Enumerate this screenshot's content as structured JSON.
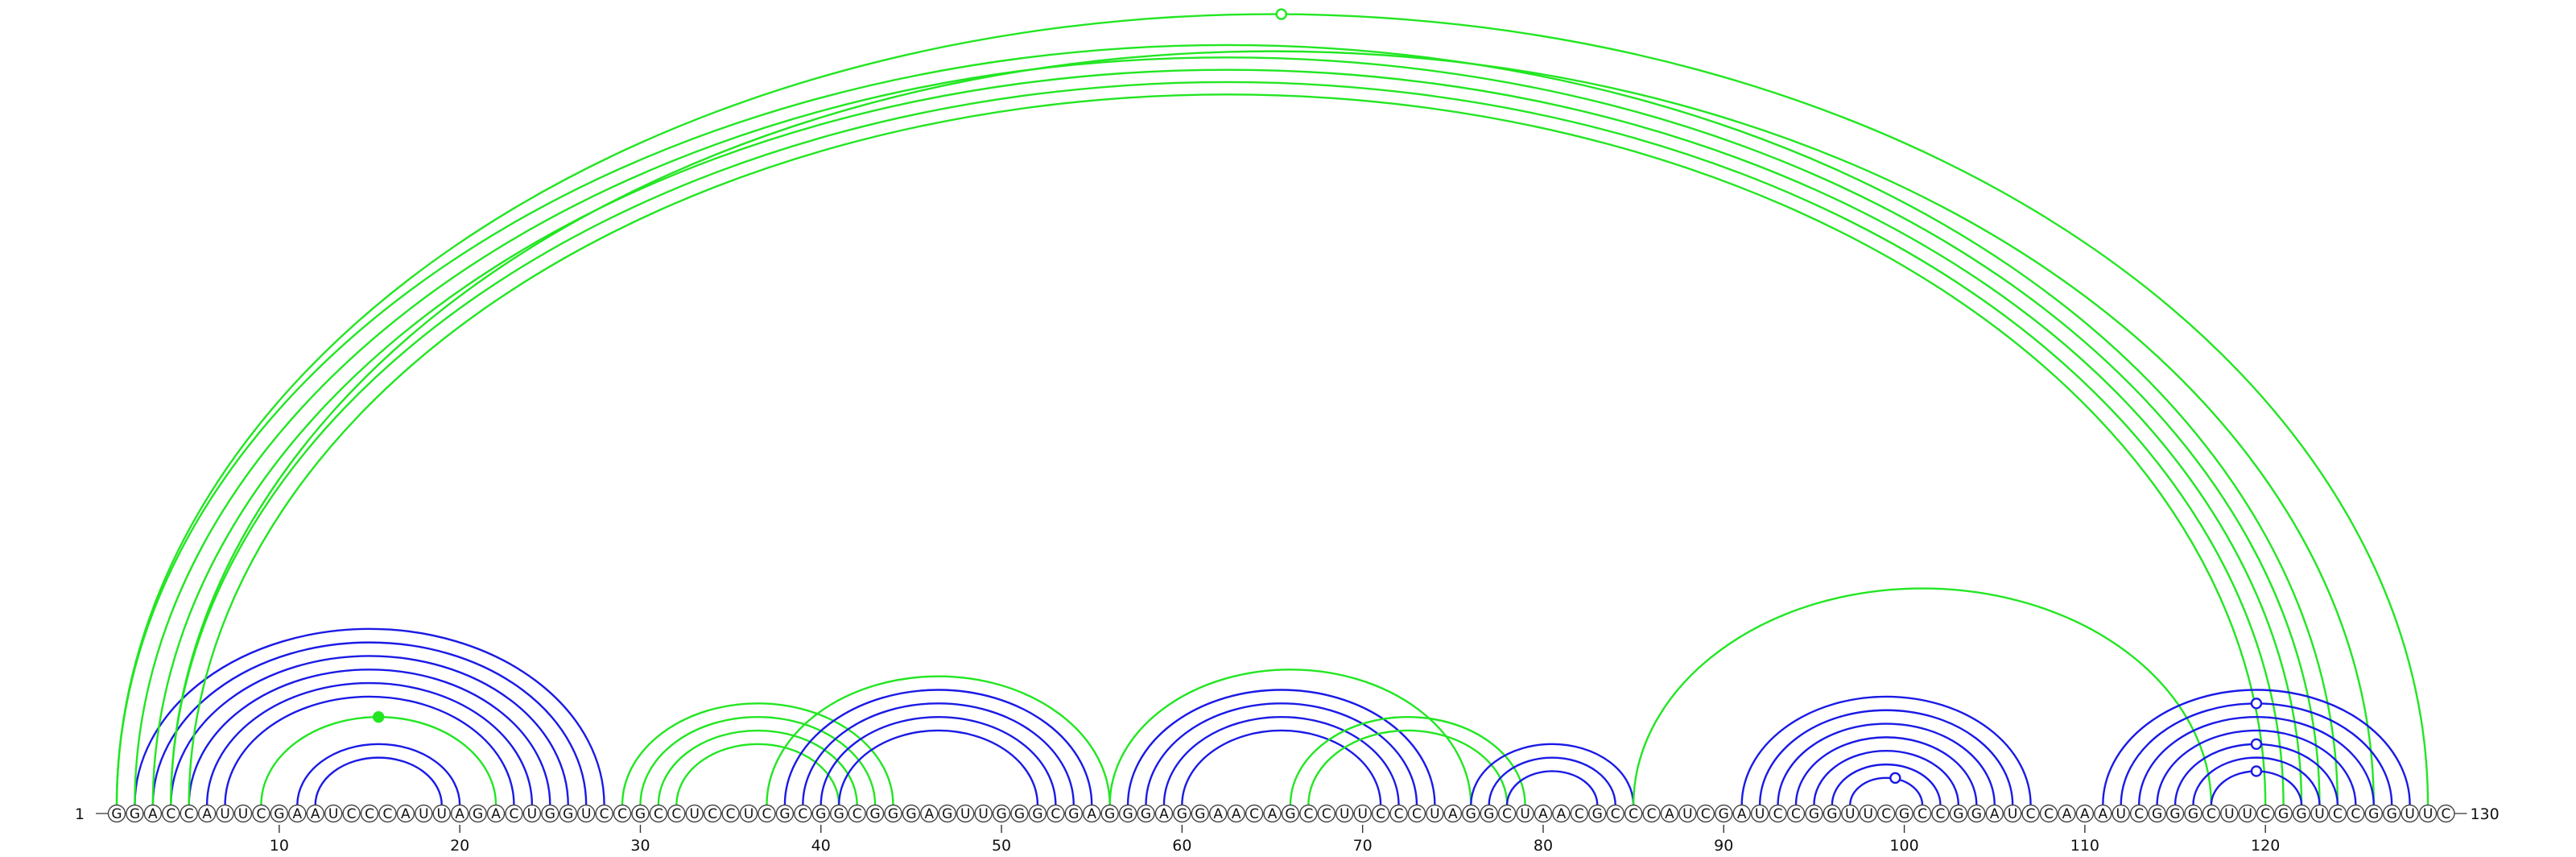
{
  "diagram": {
    "sequence": "GGACCAUUCGAAUCCCAUUAGACUGGUCCGCCUCCUCGCGGCGGGAGUUGGGCGAGGGAGGAACAGCCUUCCCUAGGCUAACGCCCAUCGAUCCGGUUCGCCGGAUCCAAAUCGGGCUUCGGUCCGGUUC",
    "start_label": "1",
    "end_label": "130",
    "tick_positions": [
      10,
      20,
      30,
      40,
      50,
      60,
      70,
      80,
      90,
      100,
      110,
      120
    ],
    "tick_labels": [
      "10",
      "20",
      "30",
      "40",
      "50",
      "60",
      "70",
      "80",
      "90",
      "100",
      "110",
      "120"
    ],
    "colors": {
      "blue": "#1a1ae6",
      "green": "#22e622"
    },
    "arcs": [
      {
        "i": 2,
        "j": 28,
        "color": "blue"
      },
      {
        "i": 3,
        "j": 27,
        "color": "blue"
      },
      {
        "i": 4,
        "j": 26,
        "color": "blue"
      },
      {
        "i": 5,
        "j": 25,
        "color": "blue"
      },
      {
        "i": 6,
        "j": 24,
        "color": "blue"
      },
      {
        "i": 7,
        "j": 23,
        "color": "blue"
      },
      {
        "i": 9,
        "j": 22,
        "color": "green"
      },
      {
        "i": 11,
        "j": 20,
        "color": "blue"
      },
      {
        "i": 12,
        "j": 19,
        "color": "blue"
      },
      {
        "i": 1,
        "j": 124,
        "color": "green"
      },
      {
        "i": 2,
        "j": 123,
        "color": "green"
      },
      {
        "i": 3,
        "j": 122,
        "color": "green"
      },
      {
        "i": 4,
        "j": 121,
        "color": "green"
      },
      {
        "i": 5,
        "j": 120,
        "color": "green"
      },
      {
        "i": 1,
        "j": 129,
        "color": "green"
      },
      {
        "i": 4,
        "j": 126,
        "color": "green"
      },
      {
        "i": 29,
        "j": 44,
        "color": "green"
      },
      {
        "i": 30,
        "j": 43,
        "color": "green"
      },
      {
        "i": 31,
        "j": 42,
        "color": "green"
      },
      {
        "i": 32,
        "j": 41,
        "color": "green"
      },
      {
        "i": 37,
        "j": 56,
        "color": "green"
      },
      {
        "i": 38,
        "j": 55,
        "color": "blue"
      },
      {
        "i": 39,
        "j": 54,
        "color": "blue"
      },
      {
        "i": 40,
        "j": 53,
        "color": "blue"
      },
      {
        "i": 41,
        "j": 52,
        "color": "blue"
      },
      {
        "i": 56,
        "j": 76,
        "color": "green"
      },
      {
        "i": 57,
        "j": 74,
        "color": "blue"
      },
      {
        "i": 58,
        "j": 73,
        "color": "blue"
      },
      {
        "i": 59,
        "j": 72,
        "color": "blue"
      },
      {
        "i": 60,
        "j": 71,
        "color": "blue"
      },
      {
        "i": 66,
        "j": 79,
        "color": "green"
      },
      {
        "i": 67,
        "j": 78,
        "color": "green"
      },
      {
        "i": 76,
        "j": 85,
        "color": "blue"
      },
      {
        "i": 77,
        "j": 84,
        "color": "blue"
      },
      {
        "i": 78,
        "j": 83,
        "color": "blue"
      },
      {
        "i": 85,
        "j": 117,
        "color": "green"
      },
      {
        "i": 91,
        "j": 107,
        "color": "blue"
      },
      {
        "i": 92,
        "j": 106,
        "color": "blue"
      },
      {
        "i": 93,
        "j": 105,
        "color": "blue"
      },
      {
        "i": 94,
        "j": 104,
        "color": "blue"
      },
      {
        "i": 95,
        "j": 103,
        "color": "blue"
      },
      {
        "i": 96,
        "j": 102,
        "color": "blue"
      },
      {
        "i": 97,
        "j": 101,
        "color": "blue"
      },
      {
        "i": 111,
        "j": 128,
        "color": "blue"
      },
      {
        "i": 112,
        "j": 127,
        "color": "blue"
      },
      {
        "i": 113,
        "j": 126,
        "color": "blue"
      },
      {
        "i": 114,
        "j": 125,
        "color": "blue"
      },
      {
        "i": 115,
        "j": 124,
        "color": "blue"
      },
      {
        "i": 116,
        "j": 123,
        "color": "blue"
      },
      {
        "i": 117,
        "j": 122,
        "color": "blue"
      }
    ],
    "markers": [
      {
        "pos": 15.5,
        "height_arc": {
          "i": 9,
          "j": 22
        },
        "color": "green",
        "filled": true
      },
      {
        "pos": 65.5,
        "height_arc": {
          "i": 1,
          "j": 129
        },
        "color": "green",
        "filled": false
      },
      {
        "pos": 99.5,
        "height_arc": {
          "i": 97,
          "j": 101
        },
        "color": "blue",
        "filled": false
      },
      {
        "pos": 119.5,
        "height_arc": {
          "i": 117,
          "j": 122
        },
        "color": "blue",
        "filled": false
      },
      {
        "pos": 119.5,
        "height_arc": {
          "i": 115,
          "j": 124
        },
        "color": "blue",
        "filled": false
      },
      {
        "pos": 119.5,
        "height_arc": {
          "i": 112,
          "j": 127
        },
        "color": "blue",
        "filled": false
      }
    ]
  }
}
